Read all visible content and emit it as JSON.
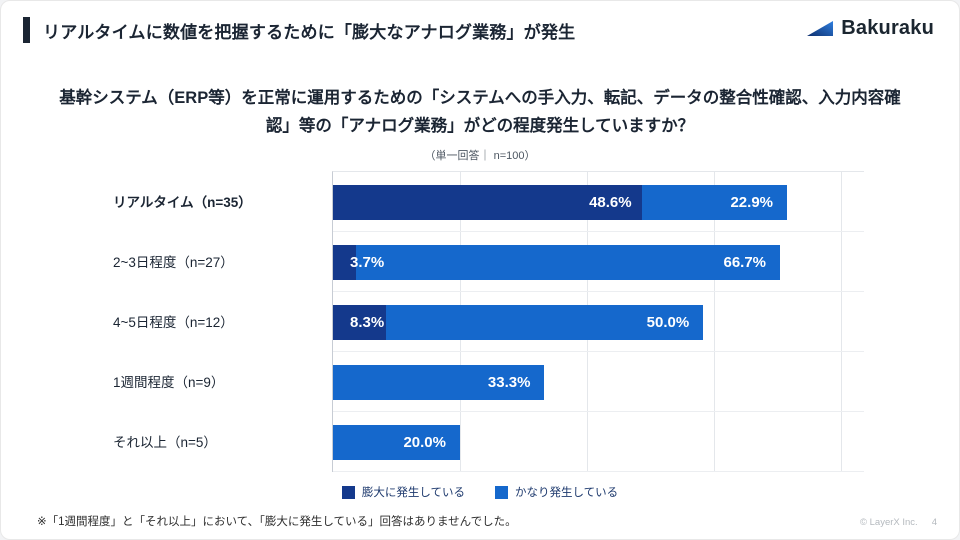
{
  "header": {
    "title": "リアルタイムに数値を把握するために「膨大なアナログ業務」が発生",
    "logo_text": "Bakuraku"
  },
  "question": {
    "title": "基幹システム（ERP等）を正常に運用するための「システムへの手入力、転記、データの整合性確認、入力内容確認」等の「アナログ業務」がどの程度発生していますか？",
    "subtitle": "（単一回答｜ n=100）"
  },
  "chart_data": {
    "type": "bar",
    "orientation": "horizontal",
    "stacked": true,
    "categories": [
      "リアルタイム（n=35）",
      "2~3日程度（n=27）",
      "4~5日程度（n=12）",
      "1週間程度（n=9）",
      "それ以上（n=5）"
    ],
    "series": [
      {
        "name": "膨大に発生している",
        "color": "#14398c",
        "values": [
          48.6,
          3.7,
          8.3,
          0,
          0
        ]
      },
      {
        "name": "かなり発生している",
        "color": "#1568cc",
        "values": [
          22.9,
          66.7,
          50.0,
          33.3,
          20.0
        ]
      }
    ],
    "value_suffix": "%",
    "xlim": [
      0,
      83.5
    ],
    "gridlines_percent": [
      20,
      40,
      60,
      80
    ],
    "legend_position": "bottom",
    "grid": true
  },
  "footnote": "※「1週間程度」と「それ以上」において、「膨大に発生している」回答はありませんでした。",
  "footer": {
    "copyright": "© LayerX Inc.",
    "page": "4"
  },
  "colors": {
    "series_dark": "#14398c",
    "series_light": "#1568cc",
    "heading": "#1b2533",
    "gridline": "#e4e7eb"
  }
}
